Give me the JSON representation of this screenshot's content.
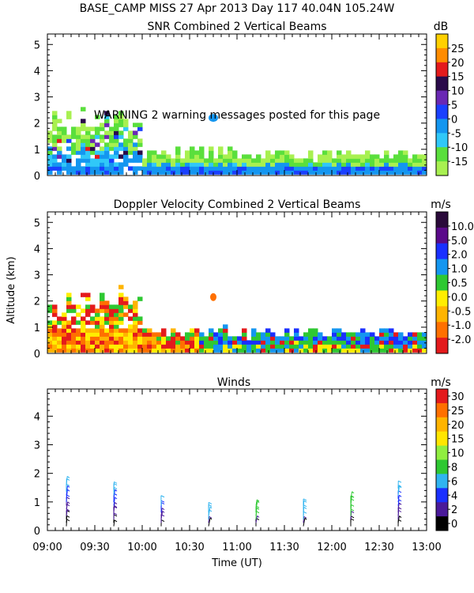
{
  "page_title": "BASE_CAMP MISS  27 Apr 2013 Day 117 40.04N 105.24W",
  "warning": "WARNING  2 warning messages posted for this page",
  "shared_axes": {
    "ylabel": "Altitude (km)",
    "xlabel": "Time (UT)",
    "x_ticks": [
      "09:00",
      "09:30",
      "10:00",
      "10:30",
      "11:00",
      "11:30",
      "12:00",
      "12:30",
      "13:00"
    ],
    "x_range_hours": [
      9,
      13
    ]
  },
  "chart_data": [
    {
      "type": "heatmap",
      "title": "SNR Combined 2 Vertical Beams",
      "unit": "dB",
      "ylim": [
        0,
        5.4
      ],
      "y_ticks": [
        "0",
        "1",
        "2",
        "3",
        "4",
        "5"
      ],
      "colorbar_labels": [
        "25",
        "20",
        "15",
        "10",
        "5",
        "0",
        "-5",
        "-10",
        "-15"
      ],
      "colorbar_colors": [
        "#ffd000",
        "#ff8c00",
        "#e41a1c",
        "#2a0a4a",
        "#6a28b4",
        "#1a40ff",
        "#1496f0",
        "#30c8f8",
        "#5adf3c",
        "#a8f050"
      ]
    },
    {
      "type": "heatmap",
      "title": "Doppler Velocity Combined 2 Vertical Beams",
      "unit": "m/s",
      "ylim": [
        0,
        5.4
      ],
      "y_ticks": [
        "0",
        "1",
        "2",
        "3",
        "4",
        "5"
      ],
      "colorbar_labels": [
        "10.0",
        "5.0",
        "2.0",
        "1.0",
        "0.5",
        "0.0",
        "-0.5",
        "-1.0",
        "-2.0"
      ],
      "colorbar_colors": [
        "#2a0a3a",
        "#5a0a8a",
        "#1a30ff",
        "#1496f0",
        "#2ec832",
        "#ffee00",
        "#ffb400",
        "#ff7000",
        "#e41a1c"
      ]
    },
    {
      "type": "scatter",
      "title": "Winds",
      "unit": "m/s",
      "ylim": [
        0,
        4.95
      ],
      "y_ticks": [
        "0",
        "1",
        "2",
        "3",
        "4"
      ],
      "colorbar_labels": [
        "30",
        "25",
        "20",
        "15",
        "10",
        "8",
        "6",
        "4",
        "2",
        "0"
      ],
      "colorbar_colors": [
        "#e41a1c",
        "#ff7000",
        "#ffb400",
        "#ffe600",
        "#90ee40",
        "#2ec832",
        "#30b4f0",
        "#1a30ff",
        "#4a1a9a",
        "#000000"
      ],
      "profile_times_ut": [
        "09:12",
        "09:42",
        "10:12",
        "10:42",
        "11:12",
        "11:42",
        "12:12",
        "12:42"
      ],
      "max_altitude_km": [
        1.6,
        1.5,
        0.95,
        0.75,
        0.9,
        0.95,
        1.2,
        1.5
      ]
    }
  ]
}
